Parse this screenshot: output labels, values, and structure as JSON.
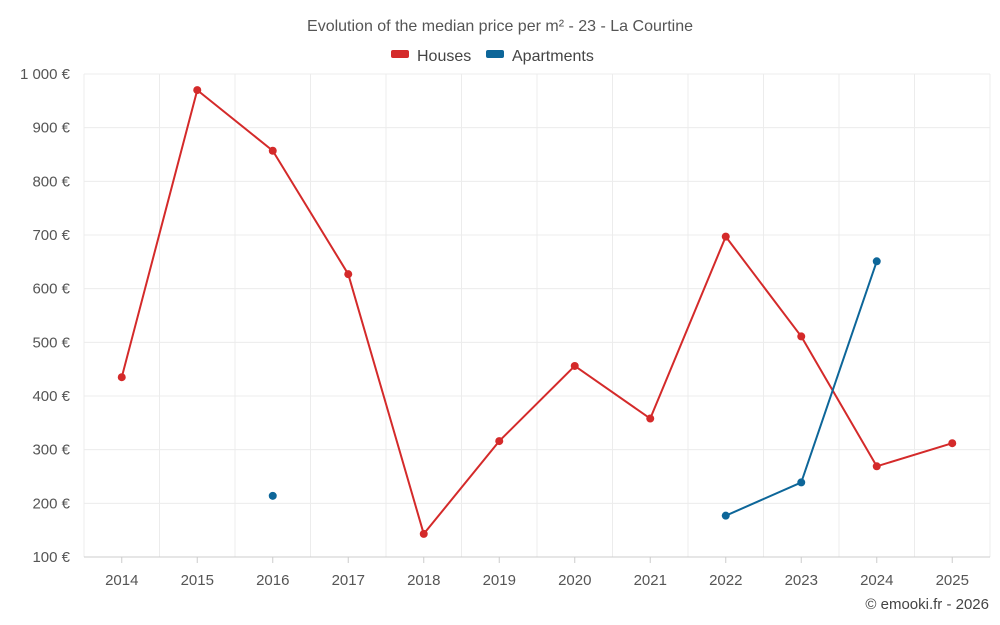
{
  "chart_data": {
    "type": "line",
    "title": "Evolution of the median price per m² - 23 - La Courtine",
    "categories": [
      "2014",
      "2015",
      "2016",
      "2017",
      "2018",
      "2019",
      "2020",
      "2021",
      "2022",
      "2023",
      "2024",
      "2025"
    ],
    "series": [
      {
        "name": "Houses",
        "color": "#d42a2a",
        "values": [
          435,
          970,
          857,
          627,
          143,
          316,
          456,
          358,
          697,
          511,
          269,
          312
        ]
      },
      {
        "name": "Apartments",
        "color": "#0d6699",
        "values": [
          null,
          null,
          214,
          null,
          null,
          null,
          null,
          null,
          177,
          239,
          651,
          null
        ]
      }
    ],
    "y_ticks": [
      {
        "value": 100,
        "label": "100 €"
      },
      {
        "value": 200,
        "label": "200 €"
      },
      {
        "value": 300,
        "label": "300 €"
      },
      {
        "value": 400,
        "label": "400 €"
      },
      {
        "value": 500,
        "label": "500 €"
      },
      {
        "value": 600,
        "label": "600 €"
      },
      {
        "value": 700,
        "label": "700 €"
      },
      {
        "value": 800,
        "label": "800 €"
      },
      {
        "value": 900,
        "label": "900 €"
      },
      {
        "value": 1000,
        "label": "1 000 €"
      }
    ],
    "ylim": [
      100,
      1000
    ],
    "grid": true,
    "legend_position": "top-center",
    "xlabel": "",
    "ylabel": ""
  },
  "credit": "© emooki.fr - 2026"
}
